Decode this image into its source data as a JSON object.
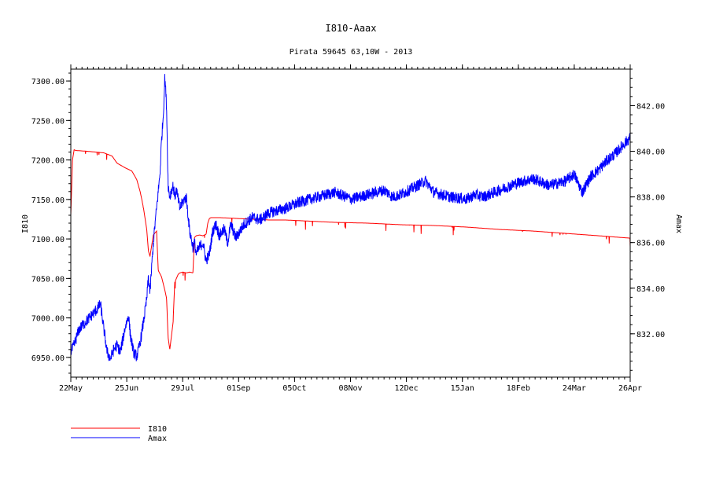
{
  "chart_data": {
    "type": "line",
    "title": "I810-Aaax",
    "subtitle": "Pirata 59645 63,10W - 2013",
    "ylabel_left": "I810",
    "ylabel_right": "Amax",
    "x_ticks": [
      "22May",
      "25Jun",
      "29Jul",
      "01Sep",
      "05Oct",
      "08Nov",
      "12Dec",
      "15Jan",
      "18Feb",
      "24Mar",
      "26Apr"
    ],
    "x_range_days": [
      0,
      339
    ],
    "y_left": {
      "ticks": [
        "6950.00",
        "7000.00",
        "7050.00",
        "7100.00",
        "7150.00",
        "7200.00",
        "7250.00",
        "7300.00"
      ],
      "range": [
        6925,
        7315
      ]
    },
    "y_right": {
      "ticks": [
        "832.00",
        "834.00",
        "836.00",
        "838.00",
        "840.00",
        "842.00"
      ],
      "range": [
        830.1,
        843.6
      ]
    },
    "legend_position": "bottom-left",
    "series": [
      {
        "name": "I810",
        "axis": "left",
        "color": "#ff0000",
        "x": [
          0,
          1,
          2,
          3,
          10,
          20,
          25,
          28,
          33,
          37,
          40,
          42,
          44,
          46,
          47,
          48,
          50,
          52,
          53,
          55,
          57,
          58,
          59,
          60,
          62,
          63,
          65,
          66,
          68,
          70,
          72,
          74,
          75,
          76,
          78,
          80,
          82,
          83,
          84,
          85,
          90,
          100,
          110,
          120,
          130,
          140,
          150,
          160,
          180,
          200,
          220,
          240,
          260,
          280,
          300,
          320,
          339
        ],
        "values": [
          7130,
          7200,
          7213,
          7212,
          7211,
          7209,
          7205,
          7196,
          7190,
          7186,
          7175,
          7160,
          7140,
          7112,
          7085,
          7078,
          7105,
          7110,
          7060,
          7052,
          7035,
          7025,
          6975,
          6960,
          6995,
          7045,
          7055,
          7057,
          7058,
          7057,
          7058,
          7057,
          7102,
          7104,
          7105,
          7104,
          7106,
          7120,
          7126,
          7127,
          7127,
          7126,
          7125,
          7124,
          7124,
          7123,
          7122,
          7121,
          7120,
          7118,
          7117,
          7115,
          7112,
          7110,
          7107,
          7104,
          7101
        ]
      },
      {
        "name": "Amax",
        "axis": "right",
        "color": "#0000ff",
        "x": [
          0,
          2,
          5,
          10,
          15,
          18,
          20,
          22,
          24,
          26,
          28,
          30,
          33,
          35,
          36,
          38,
          40,
          42,
          44,
          46,
          47,
          48,
          50,
          52,
          54,
          55,
          56,
          57,
          58,
          59,
          60,
          61,
          62,
          63,
          64,
          65,
          66,
          68,
          70,
          72,
          74,
          75,
          76,
          78,
          80,
          82,
          84,
          86,
          88,
          90,
          93,
          95,
          97,
          100,
          105,
          110,
          115,
          120,
          125,
          130,
          140,
          150,
          160,
          170,
          180,
          190,
          195,
          200,
          210,
          215,
          220,
          230,
          240,
          245,
          250,
          260,
          270,
          280,
          290,
          300,
          305,
          310,
          315,
          320,
          325,
          330,
          335,
          339
        ],
        "values": [
          831.2,
          831.5,
          832.2,
          832.6,
          833.0,
          833.3,
          832.2,
          831.2,
          830.9,
          831.3,
          831.5,
          831.2,
          832.3,
          832.8,
          832.0,
          831.2,
          831.0,
          831.6,
          832.5,
          833.5,
          834.5,
          833.8,
          836.0,
          837.5,
          839.0,
          840.5,
          841.5,
          843.3,
          842.0,
          838.5,
          838.0,
          838.3,
          838.5,
          838.0,
          838.3,
          837.9,
          837.5,
          837.8,
          838.0,
          836.5,
          835.8,
          836.0,
          835.5,
          835.8,
          836.0,
          835.2,
          835.5,
          836.5,
          836.8,
          836.3,
          836.6,
          836.0,
          836.8,
          836.2,
          836.8,
          837.1,
          837.0,
          837.3,
          837.4,
          837.5,
          837.8,
          838.0,
          838.2,
          837.9,
          838.1,
          838.3,
          838.0,
          838.1,
          838.5,
          838.7,
          838.2,
          838.0,
          837.9,
          838.1,
          838.0,
          838.3,
          838.6,
          838.8,
          838.5,
          838.7,
          839.0,
          838.2,
          838.9,
          839.2,
          839.6,
          839.9,
          840.3,
          840.6
        ]
      }
    ]
  }
}
